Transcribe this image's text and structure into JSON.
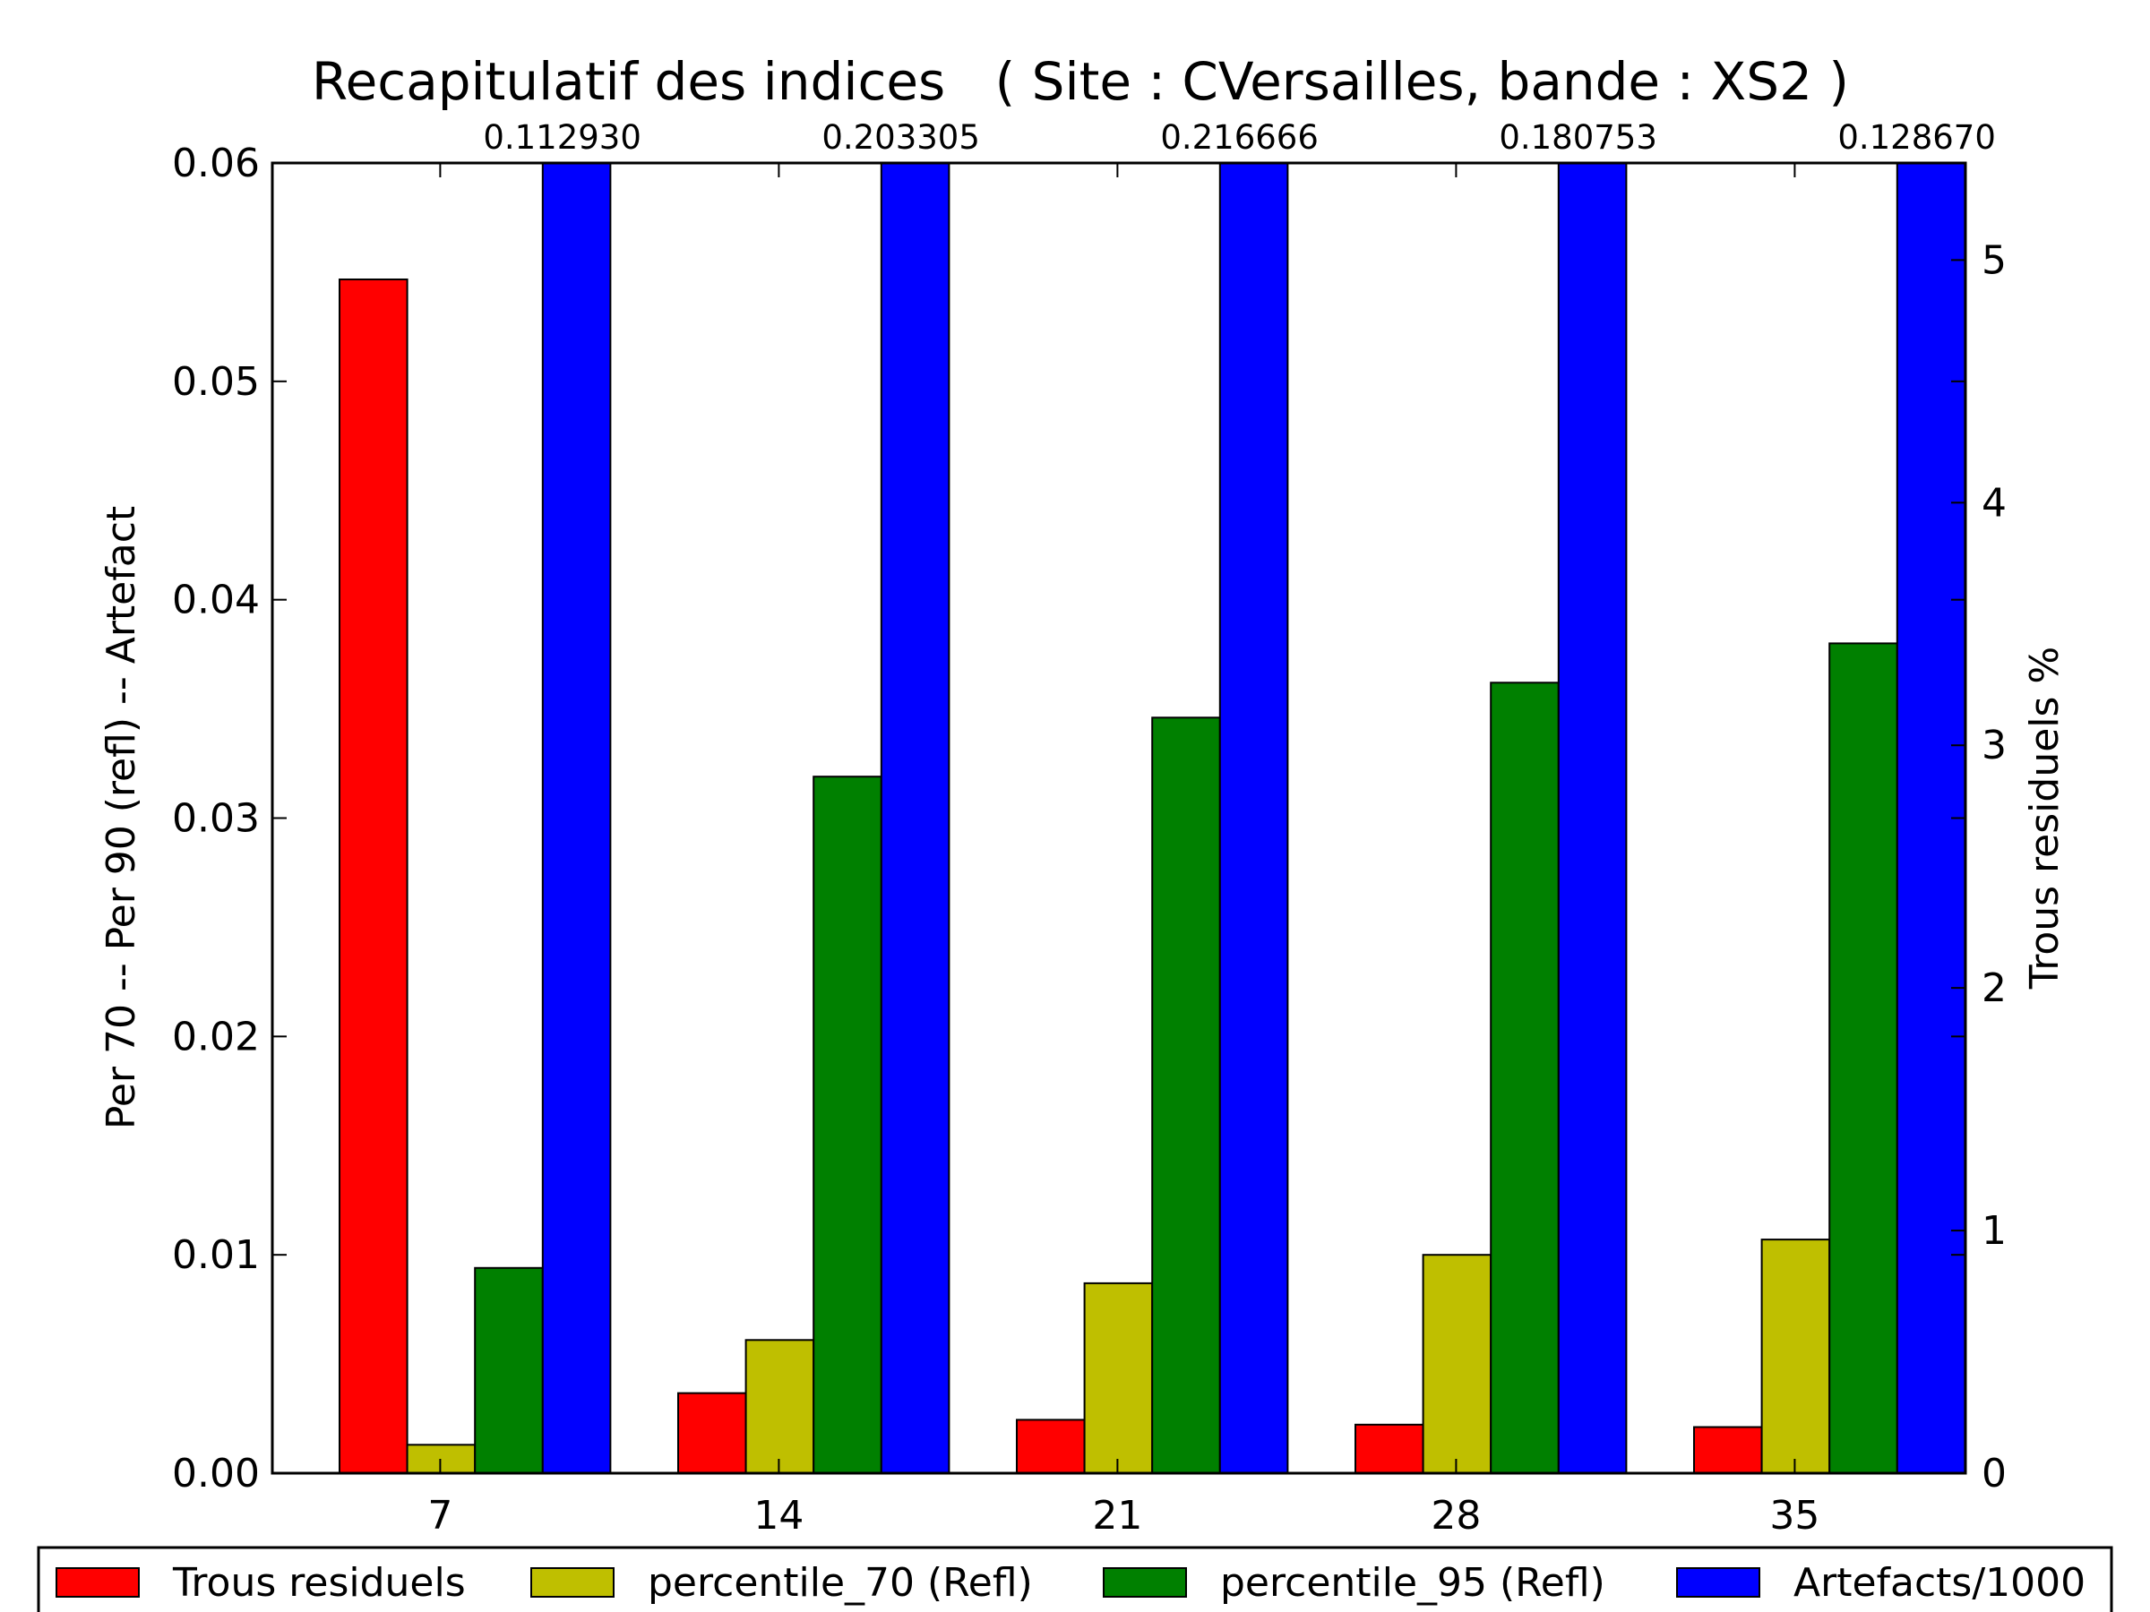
{
  "chart_data": {
    "type": "bar",
    "title": "Recapitulatif des indices   ( Site : CVersailles, bande : XS2 )",
    "categories": [
      "7",
      "14",
      "21",
      "28",
      "35"
    ],
    "ylabel": "Per 70 -- Per 90 (refl) -- Artefact",
    "y2label": "Trous residuels %",
    "ylim": [
      0,
      0.06
    ],
    "y2lim": [
      0,
      5.4
    ],
    "yticks": [
      "0.00",
      "0.01",
      "0.02",
      "0.03",
      "0.04",
      "0.05",
      "0.06"
    ],
    "y2ticks": [
      "0",
      "1",
      "2",
      "3",
      "4",
      "5"
    ],
    "grid": false,
    "legend_position": "bottom",
    "series": [
      {
        "name": "Trous residuels",
        "axis": "right",
        "color": "#ff0000",
        "values": [
          4.92,
          0.33,
          0.22,
          0.2,
          0.19
        ]
      },
      {
        "name": "percentile_70 (Refl)",
        "axis": "left",
        "color": "#bfbf00",
        "values": [
          0.0013,
          0.0061,
          0.0087,
          0.01,
          0.0107
        ]
      },
      {
        "name": "percentile_95 (Refl)",
        "axis": "left",
        "color": "#008000",
        "values": [
          0.0094,
          0.0319,
          0.0346,
          0.0362,
          0.038
        ]
      },
      {
        "name": "Artefacts/1000",
        "axis": "left",
        "color": "#0000ff",
        "values": [
          0.11293,
          0.203305,
          0.216666,
          0.180753,
          0.12867
        ]
      }
    ],
    "overflow_labels": [
      "0.112930",
      "0.203305",
      "0.216666",
      "0.180753",
      "0.128670"
    ]
  }
}
